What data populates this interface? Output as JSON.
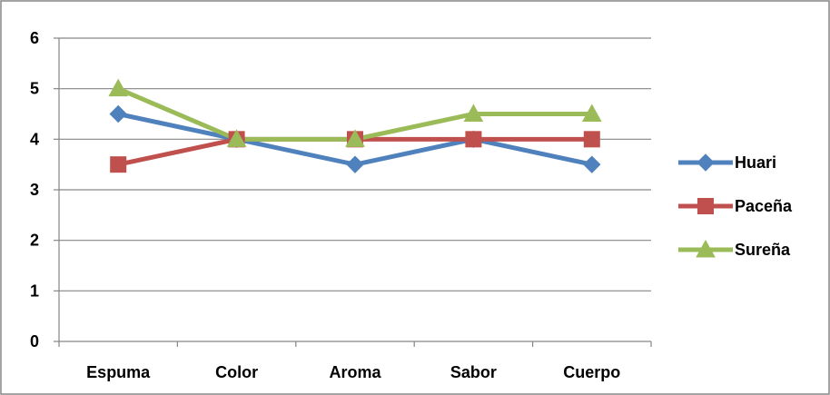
{
  "chart_data": {
    "type": "line",
    "categories": [
      "Espuma",
      "Color",
      "Aroma",
      "Sabor",
      "Cuerpo"
    ],
    "series": [
      {
        "name": "Huari",
        "values": [
          4.5,
          4,
          3.5,
          4,
          3.5
        ],
        "color": "#4F81BD",
        "marker": "diamond"
      },
      {
        "name": "Paceña",
        "values": [
          3.5,
          4,
          4,
          4,
          4
        ],
        "color": "#C0504D",
        "marker": "square"
      },
      {
        "name": "Sureña",
        "values": [
          5,
          4,
          4,
          4.5,
          4.5
        ],
        "color": "#9BBB59",
        "marker": "triangle"
      }
    ],
    "ylim": [
      0,
      6
    ],
    "yticks": [
      0,
      1,
      2,
      3,
      4,
      5,
      6
    ],
    "grid": true,
    "legend_position": "right",
    "title": "",
    "xlabel": "",
    "ylabel": ""
  }
}
